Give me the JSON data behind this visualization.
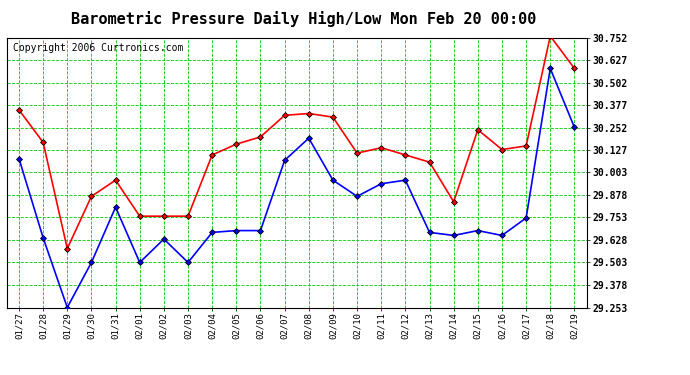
{
  "title": "Barometric Pressure Daily High/Low Mon Feb 20 00:00",
  "copyright": "Copyright 2006 Curtronics.com",
  "x_labels": [
    "01/27",
    "01/28",
    "01/29",
    "01/30",
    "01/31",
    "02/01",
    "02/02",
    "02/03",
    "02/04",
    "02/05",
    "02/06",
    "02/07",
    "02/08",
    "02/09",
    "02/10",
    "02/11",
    "02/12",
    "02/13",
    "02/14",
    "02/15",
    "02/16",
    "02/17",
    "02/18",
    "02/19"
  ],
  "high_values": [
    30.35,
    30.17,
    29.58,
    29.87,
    29.96,
    29.76,
    29.76,
    29.76,
    30.1,
    30.16,
    30.2,
    30.32,
    30.33,
    30.31,
    30.11,
    30.14,
    30.1,
    30.06,
    29.84,
    30.24,
    30.13,
    30.15,
    30.76,
    30.58
  ],
  "low_values": [
    30.08,
    29.64,
    29.253,
    29.503,
    29.81,
    29.503,
    29.633,
    29.503,
    29.67,
    29.68,
    29.68,
    30.07,
    30.193,
    29.96,
    29.87,
    29.94,
    29.96,
    29.67,
    29.653,
    29.68,
    29.653,
    29.75,
    30.58,
    30.253
  ],
  "y_ticks": [
    29.253,
    29.378,
    29.503,
    29.628,
    29.753,
    29.878,
    30.003,
    30.127,
    30.252,
    30.377,
    30.502,
    30.627,
    30.752
  ],
  "y_min": 29.253,
  "y_max": 30.752,
  "high_color": "#ff0000",
  "low_color": "#0000ff",
  "background_color": "#ffffff",
  "plot_bg_color": "#ffffff",
  "grid_color": "#00cc00",
  "marker": "D",
  "marker_size": 3,
  "marker_color": "#000000",
  "line_width": 1.2,
  "title_fontsize": 11,
  "copyright_fontsize": 7
}
